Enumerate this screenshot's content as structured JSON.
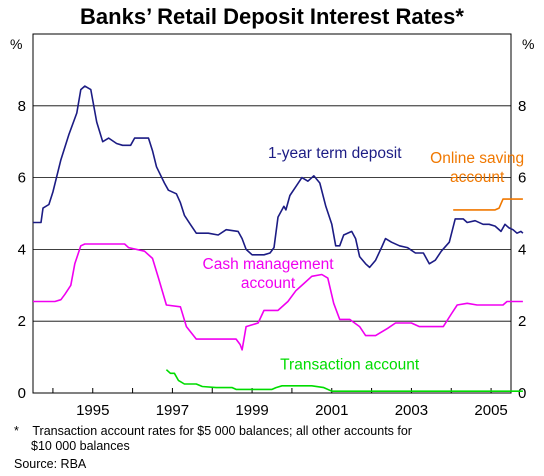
{
  "chart_data": {
    "type": "line",
    "title": "Banks’ Retail Deposit Interest Rates*",
    "unit_left": "%",
    "unit_right": "%",
    "xlim": [
      1993.5,
      2005.5
    ],
    "ylim": [
      0,
      10
    ],
    "yticks": [
      "0",
      "2",
      "4",
      "6",
      "8"
    ],
    "xticks": [
      "1995",
      "1997",
      "1999",
      "2001",
      "2003",
      "2005"
    ],
    "grid": "horizontal",
    "series": [
      {
        "name": "1-year term deposit",
        "color": "#1c1c84",
        "points": [
          [
            1993.5,
            4.75
          ],
          [
            1993.7,
            4.75
          ],
          [
            1993.75,
            5.15
          ],
          [
            1993.9,
            5.25
          ],
          [
            1994.0,
            5.6
          ],
          [
            1994.2,
            6.5
          ],
          [
            1994.4,
            7.2
          ],
          [
            1994.6,
            7.8
          ],
          [
            1994.7,
            8.45
          ],
          [
            1994.8,
            8.55
          ],
          [
            1994.95,
            8.45
          ],
          [
            1995.1,
            7.55
          ],
          [
            1995.25,
            7.0
          ],
          [
            1995.4,
            7.1
          ],
          [
            1995.6,
            6.95
          ],
          [
            1995.75,
            6.9
          ],
          [
            1995.95,
            6.9
          ],
          [
            1996.05,
            7.1
          ],
          [
            1996.4,
            7.1
          ],
          [
            1996.5,
            6.75
          ],
          [
            1996.6,
            6.3
          ],
          [
            1996.8,
            5.85
          ],
          [
            1996.9,
            5.65
          ],
          [
            1997.1,
            5.55
          ],
          [
            1997.2,
            5.3
          ],
          [
            1997.3,
            4.95
          ],
          [
            1997.45,
            4.7
          ],
          [
            1997.6,
            4.45
          ],
          [
            1997.9,
            4.45
          ],
          [
            1998.15,
            4.4
          ],
          [
            1998.35,
            4.55
          ],
          [
            1998.65,
            4.5
          ],
          [
            1998.75,
            4.3
          ],
          [
            1998.85,
            4.0
          ],
          [
            1999.0,
            3.85
          ],
          [
            1999.3,
            3.85
          ],
          [
            1999.45,
            3.9
          ],
          [
            1999.55,
            4.05
          ],
          [
            1999.65,
            4.9
          ],
          [
            1999.8,
            5.2
          ],
          [
            1999.85,
            5.1
          ],
          [
            1999.95,
            5.5
          ],
          [
            2000.1,
            5.75
          ],
          [
            2000.25,
            6.0
          ],
          [
            2000.4,
            5.9
          ],
          [
            2000.55,
            6.05
          ],
          [
            2000.7,
            5.85
          ],
          [
            2000.85,
            5.2
          ],
          [
            2001.0,
            4.7
          ],
          [
            2001.1,
            4.1
          ],
          [
            2001.2,
            4.1
          ],
          [
            2001.3,
            4.4
          ],
          [
            2001.5,
            4.5
          ],
          [
            2001.6,
            4.3
          ],
          [
            2001.7,
            3.8
          ],
          [
            2001.85,
            3.6
          ],
          [
            2001.95,
            3.5
          ],
          [
            2002.1,
            3.7
          ],
          [
            2002.25,
            4.05
          ],
          [
            2002.35,
            4.3
          ],
          [
            2002.5,
            4.2
          ],
          [
            2002.7,
            4.1
          ],
          [
            2002.9,
            4.05
          ],
          [
            2003.1,
            3.9
          ],
          [
            2003.3,
            3.9
          ],
          [
            2003.45,
            3.6
          ],
          [
            2003.6,
            3.7
          ],
          [
            2003.75,
            3.95
          ],
          [
            2003.95,
            4.2
          ],
          [
            2004.1,
            4.85
          ],
          [
            2004.3,
            4.85
          ],
          [
            2004.4,
            4.75
          ],
          [
            2004.6,
            4.8
          ],
          [
            2004.8,
            4.7
          ],
          [
            2004.95,
            4.7
          ],
          [
            2005.1,
            4.65
          ],
          [
            2005.25,
            4.5
          ],
          [
            2005.35,
            4.7
          ],
          [
            2005.45,
            4.6
          ],
          [
            2005.55,
            4.55
          ],
          [
            2005.65,
            4.45
          ],
          [
            2005.75,
            4.5
          ],
          [
            2005.8,
            4.45
          ]
        ]
      },
      {
        "name": "Online saving account",
        "color": "#f07800",
        "points": [
          [
            2004.05,
            5.1
          ],
          [
            2005.1,
            5.1
          ],
          [
            2005.2,
            5.15
          ],
          [
            2005.3,
            5.4
          ],
          [
            2005.8,
            5.4
          ]
        ]
      },
      {
        "name": "Cash management account",
        "color": "#f000f0",
        "points": [
          [
            1993.5,
            2.55
          ],
          [
            1994.05,
            2.55
          ],
          [
            1994.2,
            2.6
          ],
          [
            1994.3,
            2.75
          ],
          [
            1994.45,
            3.0
          ],
          [
            1994.55,
            3.6
          ],
          [
            1994.7,
            4.1
          ],
          [
            1994.8,
            4.15
          ],
          [
            1995.8,
            4.15
          ],
          [
            1995.9,
            4.05
          ],
          [
            1996.3,
            3.95
          ],
          [
            1996.5,
            3.75
          ],
          [
            1996.65,
            3.2
          ],
          [
            1996.85,
            2.45
          ],
          [
            1997.2,
            2.4
          ],
          [
            1997.35,
            1.85
          ],
          [
            1997.6,
            1.5
          ],
          [
            1998.6,
            1.5
          ],
          [
            1998.7,
            1.35
          ],
          [
            1998.75,
            1.2
          ],
          [
            1998.85,
            1.85
          ],
          [
            1999.15,
            1.95
          ],
          [
            1999.3,
            2.3
          ],
          [
            1999.65,
            2.3
          ],
          [
            1999.9,
            2.55
          ],
          [
            2000.1,
            2.85
          ],
          [
            2000.3,
            3.05
          ],
          [
            2000.5,
            3.25
          ],
          [
            2000.75,
            3.3
          ],
          [
            2000.9,
            3.2
          ],
          [
            2001.05,
            2.5
          ],
          [
            2001.2,
            2.05
          ],
          [
            2001.45,
            2.05
          ],
          [
            2001.7,
            1.85
          ],
          [
            2001.85,
            1.6
          ],
          [
            2002.1,
            1.6
          ],
          [
            2002.4,
            1.8
          ],
          [
            2002.6,
            1.95
          ],
          [
            2003.0,
            1.95
          ],
          [
            2003.2,
            1.85
          ],
          [
            2003.8,
            1.85
          ],
          [
            2004.0,
            2.2
          ],
          [
            2004.15,
            2.45
          ],
          [
            2004.4,
            2.5
          ],
          [
            2004.65,
            2.45
          ],
          [
            2005.3,
            2.45
          ],
          [
            2005.4,
            2.55
          ],
          [
            2005.8,
            2.55
          ]
        ]
      },
      {
        "name": "Transaction account",
        "color": "#00dc00",
        "points": [
          [
            1996.85,
            0.65
          ],
          [
            1996.95,
            0.55
          ],
          [
            1997.05,
            0.55
          ],
          [
            1997.15,
            0.35
          ],
          [
            1997.3,
            0.25
          ],
          [
            1997.6,
            0.25
          ],
          [
            1997.75,
            0.18
          ],
          [
            1998.1,
            0.15
          ],
          [
            1998.5,
            0.15
          ],
          [
            1998.6,
            0.1
          ],
          [
            1999.5,
            0.1
          ],
          [
            1999.6,
            0.15
          ],
          [
            1999.75,
            0.2
          ],
          [
            2000.5,
            0.2
          ],
          [
            2000.8,
            0.15
          ],
          [
            2001.0,
            0.05
          ],
          [
            2005.8,
            0.05
          ]
        ]
      }
    ],
    "annotations": [
      {
        "series": 0,
        "lines": [
          "1-year term deposit"
        ],
        "x": 1999.4,
        "y": 6.55,
        "align": "start"
      },
      {
        "series": 1,
        "lines": [
          "Online saving",
          "account"
        ],
        "x": 2004.65,
        "y": 6.4,
        "align": "middle"
      },
      {
        "series": 2,
        "lines": [
          "Cash management",
          "account"
        ],
        "x": 1999.4,
        "y": 3.45,
        "align": "middle"
      },
      {
        "series": 3,
        "lines": [
          "Transaction account"
        ],
        "x": 2001.45,
        "y": 0.65,
        "align": "middle"
      }
    ]
  },
  "footnote": {
    "marker": "*",
    "text_line1": "Transaction account rates for $5 000 balances; all other accounts for",
    "text_line2": "$10 000 balances"
  },
  "source": "Source: RBA"
}
